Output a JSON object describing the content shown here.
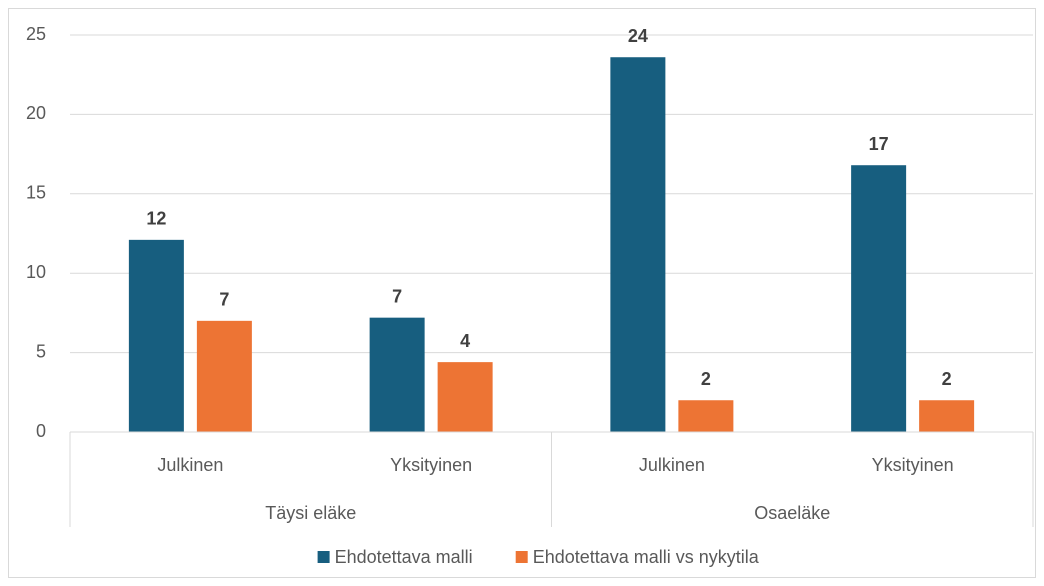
{
  "chart_data": {
    "type": "bar",
    "groups": [
      {
        "name": "Täysi eläke",
        "categories": [
          "Julkinen",
          "Yksityinen"
        ]
      },
      {
        "name": "Osaeläke",
        "categories": [
          "Julkinen",
          "Yksityinen"
        ]
      }
    ],
    "series": [
      {
        "name": "Ehdotettava malli",
        "color": "#175e7f",
        "values": [
          12.1,
          7.2,
          23.6,
          16.8
        ],
        "value_labels": [
          "12",
          "7",
          "24",
          "17"
        ]
      },
      {
        "name": "Ehdotettava malli vs nykytila",
        "color": "#ed7434",
        "values": [
          7.0,
          4.4,
          2.0,
          2.0
        ],
        "value_labels": [
          "7",
          "4",
          "2",
          "2"
        ]
      }
    ],
    "ylim": [
      0,
      25
    ],
    "yticks": [
      0,
      5,
      10,
      15,
      20,
      25
    ],
    "grid": true,
    "legend": "bottom"
  }
}
